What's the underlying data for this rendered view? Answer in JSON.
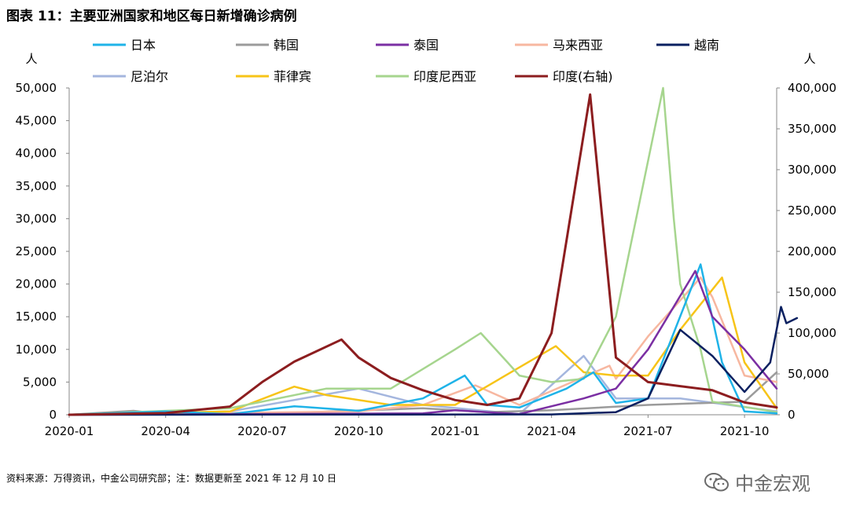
{
  "title": "图表 11：主要亚洲国家和地区每日新增确诊病例",
  "source": "资料来源：万得资讯，中金公司研究部；注：数据更新至 2021 年 12 月 10 日",
  "watermark": "中金宏观",
  "chart_data": {
    "type": "line",
    "left_unit": "人",
    "right_unit": "人",
    "x_tick_labels": [
      "2020-01",
      "2020-04",
      "2020-07",
      "2020-10",
      "2021-01",
      "2021-04",
      "2021-07",
      "2021-10"
    ],
    "x_range": [
      "2020-01",
      "2021-11"
    ],
    "y_left_range": [
      0,
      50000
    ],
    "y_left_ticks": [
      "0",
      "5,000",
      "10,000",
      "15,000",
      "20,000",
      "25,000",
      "30,000",
      "35,000",
      "40,000",
      "45,000",
      "50,000"
    ],
    "y_right_range": [
      0,
      400000
    ],
    "y_right_ticks": [
      "0",
      "50,000",
      "100,000",
      "150,000",
      "200,000",
      "250,000",
      "300,000",
      "350,000",
      "400,000"
    ],
    "legend_position": "top",
    "series": [
      {
        "name": "日本",
        "color": "#1fb3e8",
        "axis": "left",
        "points": [
          [
            "2020-01",
            0
          ],
          [
            "2020-04",
            500
          ],
          [
            "2020-06",
            100
          ],
          [
            "2020-08",
            1300
          ],
          [
            "2020-10",
            600
          ],
          [
            "2020-12",
            2500
          ],
          [
            "2021-01-10",
            6000
          ],
          [
            "2021-02",
            1500
          ],
          [
            "2021-03",
            1100
          ],
          [
            "2021-04-15",
            4000
          ],
          [
            "2021-05-10",
            6500
          ],
          [
            "2021-06",
            1800
          ],
          [
            "2021-07",
            2500
          ],
          [
            "2021-08-20",
            23000
          ],
          [
            "2021-09-10",
            8000
          ],
          [
            "2021-10",
            500
          ],
          [
            "2021-11",
            200
          ]
        ]
      },
      {
        "name": "韩国",
        "color": "#9b9b9b",
        "axis": "left",
        "points": [
          [
            "2020-01",
            0
          ],
          [
            "2020-03",
            600
          ],
          [
            "2020-04",
            50
          ],
          [
            "2020-08",
            300
          ],
          [
            "2020-12",
            1000
          ],
          [
            "2021-02",
            400
          ],
          [
            "2021-04",
            700
          ],
          [
            "2021-07",
            1500
          ],
          [
            "2021-10",
            2000
          ],
          [
            "2021-11",
            6500
          ]
        ]
      },
      {
        "name": "泰国",
        "color": "#7b2fa3",
        "axis": "left",
        "points": [
          [
            "2020-01",
            0
          ],
          [
            "2020-12",
            200
          ],
          [
            "2021-01",
            700
          ],
          [
            "2021-03",
            100
          ],
          [
            "2021-05",
            2500
          ],
          [
            "2021-06",
            4000
          ],
          [
            "2021-07",
            10000
          ],
          [
            "2021-08-15",
            22000
          ],
          [
            "2021-09",
            15000
          ],
          [
            "2021-10",
            10000
          ],
          [
            "2021-11",
            4000
          ]
        ]
      },
      {
        "name": "马来西亚",
        "color": "#f7b7a0",
        "axis": "left",
        "points": [
          [
            "2020-01",
            0
          ],
          [
            "2020-10",
            500
          ],
          [
            "2020-12",
            1500
          ],
          [
            "2021-01-20",
            4500
          ],
          [
            "2021-03",
            1500
          ],
          [
            "2021-05-25",
            7500
          ],
          [
            "2021-06",
            5500
          ],
          [
            "2021-07",
            12000
          ],
          [
            "2021-08-20",
            21000
          ],
          [
            "2021-09",
            18000
          ],
          [
            "2021-10",
            6000
          ],
          [
            "2021-11",
            5000
          ]
        ]
      },
      {
        "name": "越南",
        "color": "#0a2060",
        "axis": "left",
        "points": [
          [
            "2020-01",
            0
          ],
          [
            "2021-04",
            50
          ],
          [
            "2021-06",
            400
          ],
          [
            "2021-07",
            2500
          ],
          [
            "2021-08",
            13000
          ],
          [
            "2021-09",
            9000
          ],
          [
            "2021-10",
            3500
          ],
          [
            "2021-10-25",
            8000
          ],
          [
            "2021-11-05",
            16500
          ],
          [
            "2021-11-10",
            14000
          ],
          [
            "2021-11-20",
            14800
          ]
        ]
      },
      {
        "name": "尼泊尔",
        "color": "#a4b6de",
        "axis": "left",
        "points": [
          [
            "2020-01",
            0
          ],
          [
            "2020-06",
            500
          ],
          [
            "2020-10",
            4000
          ],
          [
            "2020-12",
            1500
          ],
          [
            "2021-03",
            100
          ],
          [
            "2021-05",
            9000
          ],
          [
            "2021-06",
            2500
          ],
          [
            "2021-08",
            2500
          ],
          [
            "2021-11",
            500
          ]
        ]
      },
      {
        "name": "菲律宾",
        "color": "#f7c418",
        "axis": "left",
        "points": [
          [
            "2020-01",
            0
          ],
          [
            "2020-06",
            500
          ],
          [
            "2020-08",
            4300
          ],
          [
            "2020-09",
            3000
          ],
          [
            "2020-11",
            1500
          ],
          [
            "2021-01",
            1500
          ],
          [
            "2021-04-05",
            10500
          ],
          [
            "2021-05",
            6500
          ],
          [
            "2021-06",
            6000
          ],
          [
            "2021-07",
            6000
          ],
          [
            "2021-08",
            13000
          ],
          [
            "2021-09-10",
            21000
          ],
          [
            "2021-10",
            8000
          ],
          [
            "2021-11",
            1000
          ]
        ]
      },
      {
        "name": "印度尼西亚",
        "color": "#a6d58e",
        "axis": "left",
        "points": [
          [
            "2020-01",
            0
          ],
          [
            "2020-06",
            1000
          ],
          [
            "2020-09",
            4000
          ],
          [
            "2020-11",
            4000
          ],
          [
            "2021-01",
            10000
          ],
          [
            "2021-01-25",
            12500
          ],
          [
            "2021-02-20",
            8000
          ],
          [
            "2021-03",
            6000
          ],
          [
            "2021-04",
            5000
          ],
          [
            "2021-05",
            5500
          ],
          [
            "2021-06",
            15000
          ],
          [
            "2021-07-15",
            50000
          ],
          [
            "2021-07-25",
            30000
          ],
          [
            "2021-08",
            20000
          ],
          [
            "2021-08-20",
            10000
          ],
          [
            "2021-09",
            2000
          ],
          [
            "2021-11",
            400
          ]
        ]
      },
      {
        "name": "印度(右轴)",
        "color": "#8c1d1f",
        "axis": "right",
        "points": [
          [
            "2020-01",
            0
          ],
          [
            "2020-04",
            2000
          ],
          [
            "2020-06",
            10000
          ],
          [
            "2020-07",
            40000
          ],
          [
            "2020-08",
            65000
          ],
          [
            "2020-09-15",
            92000
          ],
          [
            "2020-10",
            70000
          ],
          [
            "2020-11",
            45000
          ],
          [
            "2020-12",
            30000
          ],
          [
            "2021-01",
            18000
          ],
          [
            "2021-02",
            12000
          ],
          [
            "2021-03",
            20000
          ],
          [
            "2021-04",
            100000
          ],
          [
            "2021-05-07",
            392000
          ],
          [
            "2021-06",
            70000
          ],
          [
            "2021-07",
            40000
          ],
          [
            "2021-08",
            35000
          ],
          [
            "2021-09",
            30000
          ],
          [
            "2021-10",
            15000
          ],
          [
            "2021-11",
            9000
          ]
        ]
      }
    ]
  }
}
